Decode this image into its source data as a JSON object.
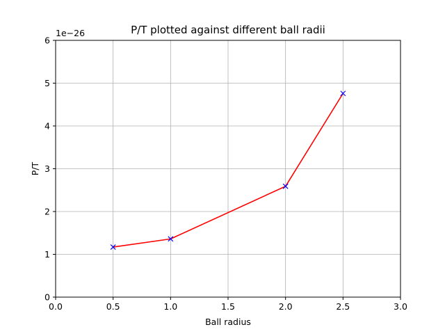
{
  "chart_data": {
    "type": "line",
    "title": "P/T plotted against different ball radii",
    "xlabel": "Ball radius",
    "ylabel": "P/T",
    "y_offset_label": "1e−26",
    "xlim": [
      0.0,
      3.0
    ],
    "ylim": [
      0,
      6
    ],
    "x_ticks": [
      0.0,
      0.5,
      1.0,
      1.5,
      2.0,
      2.5,
      3.0
    ],
    "x_tick_labels": [
      "0.0",
      "0.5",
      "1.0",
      "1.5",
      "2.0",
      "2.5",
      "3.0"
    ],
    "y_ticks": [
      0,
      1,
      2,
      3,
      4,
      5,
      6
    ],
    "y_tick_labels": [
      "0",
      "1",
      "2",
      "3",
      "4",
      "5",
      "6"
    ],
    "grid": true,
    "series": [
      {
        "x": [
          0.5,
          1.0,
          2.0,
          2.5
        ],
        "y": [
          1.17,
          1.36,
          2.59,
          4.76
        ],
        "line_color": "#ff0000",
        "marker": "x",
        "marker_color": "#0000ff"
      }
    ]
  }
}
